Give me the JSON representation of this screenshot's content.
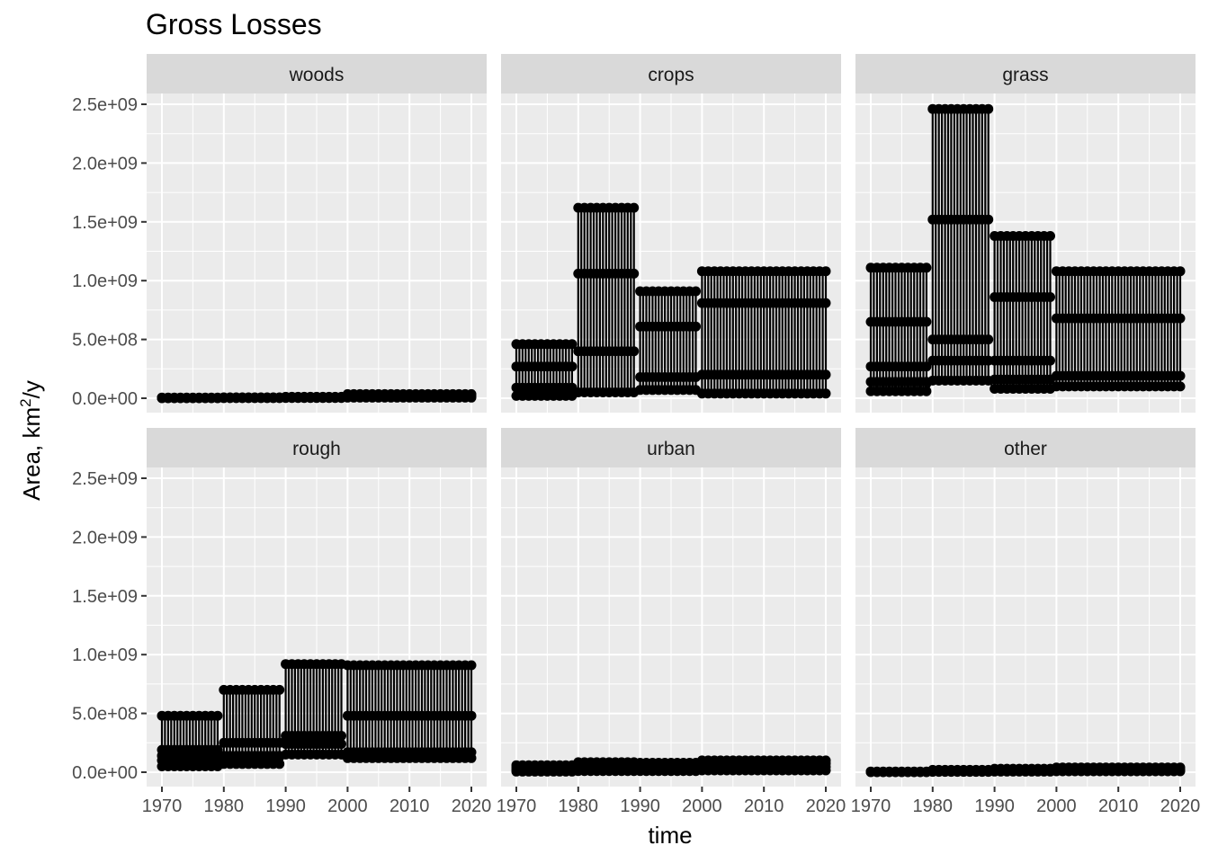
{
  "chart_data": {
    "type": "line",
    "title": "Gross Losses",
    "xlabel": "time",
    "ylabel": "Area,  km",
    "ylabel_superscript": "2",
    "ylabel_suffix": "/y",
    "xlim": [
      1970,
      2020
    ],
    "ylim": [
      0,
      2500000000
    ],
    "x_ticks": [
      1970,
      1980,
      1990,
      2000,
      2010,
      2020
    ],
    "y_ticks": [
      0,
      500000000,
      1000000000,
      1500000000,
      2000000000,
      2500000000
    ],
    "y_tick_labels": [
      "0.0e+00",
      "5.0e+08",
      "1.0e+09",
      "1.5e+09",
      "2.0e+09",
      "2.5e+09"
    ],
    "grid": true,
    "colors": {
      "panel_bg": "#ebebeb",
      "strip_bg": "#d9d9d9",
      "grid": "#ffffff",
      "mark": "#000000"
    },
    "note_on_structure": "",
    "panels": [
      {
        "name": "woods",
        "segments": [
          {
            "from": 1970,
            "to": 1979,
            "levels": [
              0,
              2000000,
              4000000,
              6000000
            ]
          },
          {
            "from": 1980,
            "to": 1989,
            "levels": [
              1000000,
              3000000,
              6000000,
              8000000
            ]
          },
          {
            "from": 1990,
            "to": 1999,
            "levels": [
              2000000,
              5000000,
              9000000,
              12000000
            ]
          },
          {
            "from": 2000,
            "to": 2020,
            "levels": [
              5000000,
              15000000,
              25000000,
              35000000
            ]
          }
        ]
      },
      {
        "name": "crops",
        "segments": [
          {
            "from": 1970,
            "to": 1979,
            "levels": [
              20000000,
              90000000,
              270000000,
              460000000
            ]
          },
          {
            "from": 1980,
            "to": 1989,
            "levels": [
              50000000,
              400000000,
              1060000000,
              1620000000
            ]
          },
          {
            "from": 1990,
            "to": 1999,
            "levels": [
              70000000,
              180000000,
              610000000,
              910000000
            ]
          },
          {
            "from": 2000,
            "to": 2020,
            "levels": [
              40000000,
              200000000,
              810000000,
              1080000000
            ]
          }
        ]
      },
      {
        "name": "grass",
        "segments": [
          {
            "from": 1970,
            "to": 1979,
            "levels": [
              60000000,
              140000000,
              270000000,
              650000000,
              1110000000
            ]
          },
          {
            "from": 1980,
            "to": 1989,
            "levels": [
              150000000,
              320000000,
              500000000,
              1520000000,
              2460000000
            ]
          },
          {
            "from": 1990,
            "to": 1999,
            "levels": [
              80000000,
              160000000,
              320000000,
              860000000,
              1380000000
            ]
          },
          {
            "from": 2000,
            "to": 2020,
            "levels": [
              100000000,
              190000000,
              680000000,
              1080000000
            ]
          }
        ]
      },
      {
        "name": "rough",
        "segments": [
          {
            "from": 1970,
            "to": 1979,
            "levels": [
              50000000,
              100000000,
              140000000,
              190000000,
              480000000
            ]
          },
          {
            "from": 1980,
            "to": 1989,
            "levels": [
              70000000,
              140000000,
              250000000,
              700000000
            ]
          },
          {
            "from": 1990,
            "to": 1999,
            "levels": [
              150000000,
              240000000,
              310000000,
              920000000
            ]
          },
          {
            "from": 2000,
            "to": 2020,
            "levels": [
              120000000,
              170000000,
              480000000,
              910000000
            ]
          }
        ]
      },
      {
        "name": "urban",
        "segments": [
          {
            "from": 1970,
            "to": 1979,
            "levels": [
              5000000,
              20000000,
              40000000,
              60000000
            ]
          },
          {
            "from": 1980,
            "to": 1989,
            "levels": [
              10000000,
              40000000,
              60000000,
              85000000
            ]
          },
          {
            "from": 1990,
            "to": 1999,
            "levels": [
              10000000,
              35000000,
              60000000,
              80000000
            ]
          },
          {
            "from": 2000,
            "to": 2020,
            "levels": [
              15000000,
              45000000,
              75000000,
              100000000
            ]
          }
        ]
      },
      {
        "name": "other",
        "segments": [
          {
            "from": 1970,
            "to": 1979,
            "levels": [
              0,
              3000000,
              6000000
            ]
          },
          {
            "from": 1980,
            "to": 1989,
            "levels": [
              3000000,
              10000000,
              20000000
            ]
          },
          {
            "from": 1990,
            "to": 1999,
            "levels": [
              5000000,
              15000000,
              30000000
            ]
          },
          {
            "from": 2000,
            "to": 2020,
            "levels": [
              8000000,
              20000000,
              40000000
            ]
          }
        ]
      }
    ]
  }
}
